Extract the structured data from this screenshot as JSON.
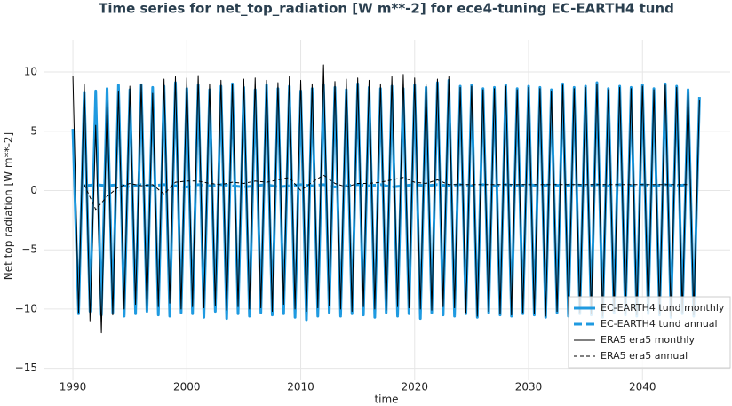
{
  "chart_data": {
    "type": "line",
    "title": "Time series for net_top_radiation [W m**-2] for ece4-tuning EC-EARTH4 tund",
    "x_label": "time",
    "y_label": "Net top radiation [W m**-2]",
    "xlim": [
      1987.5,
      2047.7
    ],
    "ylim": [
      -16,
      12.7
    ],
    "xticks": [
      1990,
      2000,
      2010,
      2020,
      2030,
      2040
    ],
    "yticks": [
      {
        "value": -15,
        "label": "−15"
      },
      {
        "value": -10,
        "label": "−10"
      },
      {
        "value": -5,
        "label": "−5"
      },
      0,
      5,
      10
    ],
    "grid": true,
    "legend": "lower right",
    "series": [
      {
        "name": "EC-EARTH4 tund monthly",
        "color": "#1f9ae0",
        "width": 3,
        "style": "solid",
        "x": [
          1990,
          1990.5,
          1991,
          1991.5,
          1992,
          1992.5,
          1993,
          1993.5,
          1994,
          1994.5,
          1995,
          1995.5,
          1996,
          1996.5,
          1997,
          1997.5,
          1998,
          1998.5,
          1999,
          1999.5,
          2000,
          2000.5,
          2001,
          2001.5,
          2002,
          2002.5,
          2003,
          2003.5,
          2004,
          2004.5,
          2005,
          2005.5,
          2006,
          2006.5,
          2007,
          2007.5,
          2008,
          2008.5,
          2009,
          2009.5,
          2010,
          2010.5,
          2011,
          2011.5,
          2012,
          2012.5,
          2013,
          2013.5,
          2014,
          2014.5,
          2015,
          2015.5,
          2016,
          2016.5,
          2017,
          2017.5,
          2018,
          2018.5,
          2019,
          2019.5,
          2020,
          2020.5,
          2021,
          2021.5,
          2022,
          2022.5,
          2023,
          2023.5,
          2024,
          2024.5,
          2025,
          2025.5,
          2026,
          2026.5,
          2027,
          2027.5,
          2028,
          2028.5,
          2029,
          2029.5,
          2030,
          2030.5,
          2031,
          2031.5,
          2032,
          2032.5,
          2033,
          2033.5,
          2034,
          2034.5,
          2035,
          2035.5,
          2036,
          2036.5,
          2037,
          2037.5,
          2038,
          2038.5,
          2039,
          2039.5,
          2040,
          2040.5,
          2041,
          2041.5,
          2042,
          2042.5,
          2043,
          2043.5,
          2044,
          2044.5,
          2045
        ],
        "values": [
          5.2,
          -10.4,
          8.3,
          -10.2,
          8.4,
          -10.5,
          8.6,
          -10.3,
          8.9,
          -10.6,
          8.5,
          -10.4,
          8.9,
          -10.2,
          8.7,
          -10.5,
          8.8,
          -10.6,
          9.1,
          -10.3,
          8.6,
          -10.4,
          8.9,
          -10.7,
          8.5,
          -10.2,
          8.8,
          -10.8,
          9.0,
          -10.4,
          8.7,
          -10.6,
          8.5,
          -10.3,
          8.9,
          -10.5,
          8.6,
          -10.4,
          8.8,
          -10.7,
          8.4,
          -10.9,
          8.6,
          -10.6,
          8.9,
          -10.3,
          8.7,
          -10.6,
          8.5,
          -10.4,
          9.0,
          -10.5,
          8.7,
          -10.7,
          8.6,
          -10.3,
          8.8,
          -10.6,
          8.6,
          -10.4,
          8.9,
          -10.8,
          8.7,
          -10.3,
          9.1,
          -10.5,
          9.3,
          -10.6,
          8.8,
          -10.4,
          8.9,
          -10.7,
          8.6,
          -10.3,
          8.7,
          -10.5,
          8.9,
          -10.6,
          8.6,
          -10.4,
          8.8,
          -10.5,
          8.7,
          -10.7,
          8.5,
          -10.3,
          9.0,
          -10.6,
          8.7,
          -10.4,
          8.8,
          -10.5,
          9.1,
          -10.7,
          8.6,
          -10.3,
          8.8,
          -10.5,
          8.7,
          -10.6,
          8.9,
          -10.4,
          8.6,
          -10.5,
          9.0,
          -10.7,
          8.8,
          -10.4,
          8.5,
          -10.6,
          7.9
        ]
      },
      {
        "name": "EC-EARTH4 tund annual",
        "color": "#1f9ae0",
        "width": 3,
        "style": "dashed",
        "x": [
          1991,
          1992,
          1993,
          1994,
          1995,
          1996,
          1997,
          1998,
          1999,
          2000,
          2001,
          2002,
          2003,
          2004,
          2005,
          2006,
          2007,
          2008,
          2009,
          2010,
          2011,
          2012,
          2013,
          2014,
          2015,
          2016,
          2017,
          2018,
          2019,
          2020,
          2021,
          2022,
          2023,
          2024,
          2025,
          2026,
          2027,
          2028,
          2029,
          2030,
          2031,
          2032,
          2033,
          2034,
          2035,
          2036,
          2037,
          2038,
          2039,
          2040,
          2041,
          2042,
          2043,
          2044
        ],
        "values": [
          0.4,
          0.5,
          0.4,
          0.5,
          0.3,
          0.5,
          0.4,
          0.5,
          0.4,
          0.3,
          0.5,
          0.4,
          0.5,
          0.4,
          0.3,
          0.4,
          0.5,
          0.3,
          0.4,
          0.5,
          0.4,
          0.5,
          0.3,
          0.4,
          0.5,
          0.4,
          0.5,
          0.3,
          0.4,
          0.5,
          0.4,
          0.5,
          0.4,
          0.5,
          0.4,
          0.5,
          0.4,
          0.5,
          0.4,
          0.5,
          0.4,
          0.5,
          0.4,
          0.5,
          0.4,
          0.5,
          0.4,
          0.5,
          0.4,
          0.5,
          0.4,
          0.5,
          0.4,
          0.5
        ]
      },
      {
        "name": "ERA5 era5 monthly",
        "color": "#000000",
        "width": 1,
        "style": "solid",
        "x": [
          1990,
          1990.5,
          1991,
          1991.5,
          1992,
          1992.5,
          1993,
          1993.5,
          1994,
          1994.5,
          1995,
          1995.5,
          1996,
          1996.5,
          1997,
          1997.5,
          1998,
          1998.5,
          1999,
          1999.5,
          2000,
          2000.5,
          2001,
          2001.5,
          2002,
          2002.5,
          2003,
          2003.5,
          2004,
          2004.5,
          2005,
          2005.5,
          2006,
          2006.5,
          2007,
          2007.5,
          2008,
          2008.5,
          2009,
          2009.5,
          2010,
          2010.5,
          2011,
          2011.5,
          2012,
          2012.5,
          2013,
          2013.5,
          2014,
          2014.5,
          2015,
          2015.5,
          2016,
          2016.5,
          2017,
          2017.5,
          2018,
          2018.5,
          2019,
          2019.5,
          2020,
          2020.5,
          2021,
          2021.5,
          2022,
          2022.5,
          2023,
          2023.5,
          2024,
          2024.5,
          2025,
          2025.5,
          2026,
          2026.5,
          2027,
          2027.5,
          2028,
          2028.5,
          2029,
          2029.5,
          2030,
          2030.5,
          2031,
          2031.5,
          2032,
          2032.5,
          2033,
          2033.5,
          2034,
          2034.5,
          2035,
          2035.5,
          2036,
          2036.5,
          2037,
          2037.5,
          2038,
          2038.5,
          2039,
          2039.5,
          2040,
          2040.5,
          2041,
          2041.5,
          2042,
          2042.5,
          2043,
          2043.5,
          2044,
          2044.5,
          2045
        ],
        "values": [
          9.7,
          -10.3,
          9.0,
          -11.0,
          5.5,
          -12.0,
          7.6,
          -10.5,
          8.4,
          -10.0,
          8.8,
          -9.6,
          9.0,
          -10.1,
          8.2,
          -9.8,
          9.4,
          -9.5,
          9.6,
          -10.0,
          9.5,
          -9.8,
          9.7,
          -9.9,
          9.0,
          -9.7,
          9.3,
          -10.1,
          9.0,
          -9.8,
          9.4,
          -10.0,
          9.5,
          -9.9,
          9.3,
          -10.2,
          9.1,
          -9.6,
          9.6,
          -10.0,
          9.3,
          -10.2,
          9.0,
          -9.9,
          10.6,
          -9.7,
          9.2,
          -10.0,
          9.4,
          -10.2,
          9.5,
          -9.8,
          9.3,
          -10.0,
          9.0,
          -10.1,
          9.6,
          -9.8,
          9.8,
          -9.9,
          9.5,
          -10.0,
          9.0,
          -10.1,
          9.4,
          -9.8,
          9.6,
          -9.9,
          8.7,
          -10.3,
          8.8,
          -10.6,
          8.5,
          -10.2,
          8.6,
          -10.4,
          8.8,
          -10.5,
          8.5,
          -10.3,
          8.7,
          -10.4,
          8.6,
          -10.6,
          8.4,
          -10.2,
          8.9,
          -10.5,
          8.6,
          -10.3,
          8.7,
          -10.4,
          9.0,
          -10.6,
          8.5,
          -10.2,
          8.7,
          -10.4,
          8.6,
          -10.5,
          8.8,
          -10.3,
          8.5,
          -10.4,
          8.9,
          -10.6,
          8.7,
          -10.3,
          8.4,
          -10.5,
          7.6
        ]
      },
      {
        "name": "ERA5 era5 annual",
        "color": "#000000",
        "width": 1,
        "style": "dashed",
        "x": [
          1991,
          1992,
          1993,
          1994,
          1995,
          1996,
          1997,
          1998,
          1999,
          2000,
          2001,
          2002,
          2003,
          2004,
          2005,
          2006,
          2007,
          2008,
          2009,
          2010,
          2011,
          2012,
          2013,
          2014,
          2015,
          2016,
          2017,
          2018,
          2019,
          2020,
          2021,
          2022,
          2023,
          2024,
          2025,
          2026,
          2027,
          2028,
          2029,
          2030,
          2031,
          2032,
          2033,
          2034,
          2035,
          2036,
          2037,
          2038,
          2039,
          2040,
          2041,
          2042,
          2043,
          2044
        ],
        "values": [
          0.5,
          -1.6,
          -0.5,
          0.3,
          0.6,
          0.4,
          0.5,
          -0.3,
          0.7,
          0.8,
          0.8,
          0.6,
          0.5,
          0.7,
          0.6,
          0.8,
          0.7,
          0.9,
          1.1,
          0.0,
          0.7,
          1.3,
          0.6,
          0.3,
          0.6,
          0.6,
          0.7,
          0.9,
          1.1,
          0.7,
          0.6,
          0.9,
          0.5,
          0.5,
          0.5,
          0.5,
          0.5,
          0.5,
          0.5,
          0.5,
          0.5,
          0.5,
          0.5,
          0.5,
          0.5,
          0.5,
          0.5,
          0.5,
          0.5,
          0.5,
          0.5,
          0.5,
          0.5,
          0.5
        ]
      }
    ]
  }
}
